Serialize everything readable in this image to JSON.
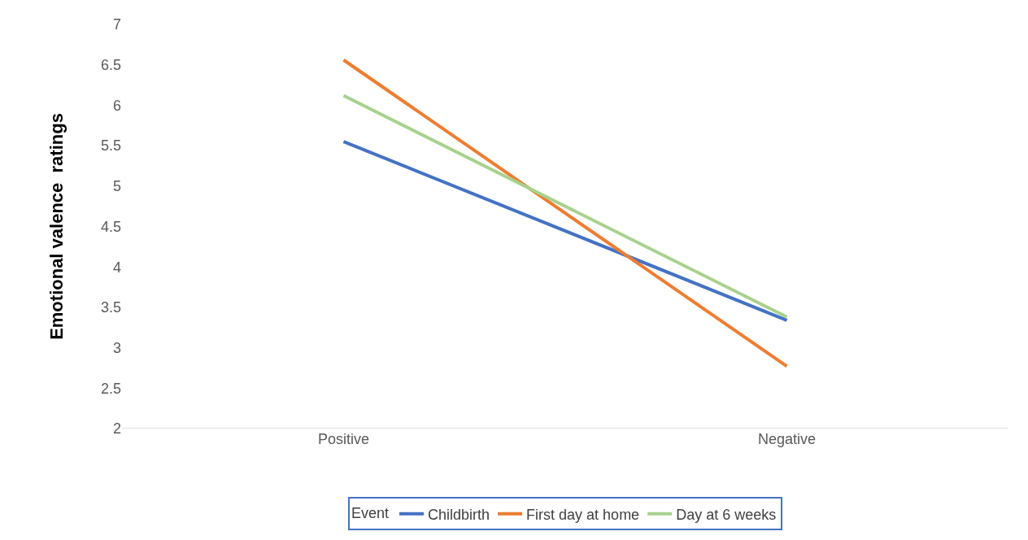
{
  "chart_data": {
    "type": "line",
    "ylabel": "Emotional valence  ratings",
    "legend_title": "Event",
    "categories": [
      "Positive",
      "Negative"
    ],
    "series": [
      {
        "name": "Childbirth",
        "color": "#4472c4",
        "values": [
          5.55,
          3.34
        ]
      },
      {
        "name": "First day at home",
        "color": "#ed7d31",
        "values": [
          6.56,
          2.77
        ]
      },
      {
        "name": "Day at 6 weeks",
        "color": "#a9d18e",
        "values": [
          6.12,
          3.38
        ]
      }
    ],
    "ylim": [
      2,
      7
    ],
    "yticks": [
      2,
      2.5,
      3,
      3.5,
      4,
      4.5,
      5,
      5.5,
      6,
      6.5,
      7
    ],
    "legend": "bottom",
    "marker": "none",
    "line_style": "solid"
  }
}
